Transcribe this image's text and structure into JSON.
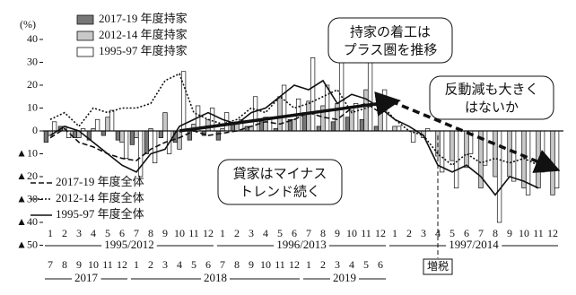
{
  "chart_data": {
    "type": "bar",
    "y_label": "(%)",
    "ylim": [
      -50,
      40
    ],
    "yticks": [
      40,
      30,
      20,
      10,
      0,
      {
        "value": -10,
        "label": "▲10"
      },
      {
        "value": -20,
        "label": "▲20"
      },
      {
        "value": -30,
        "label": "▲30"
      },
      {
        "value": -40,
        "label": "▲40"
      },
      {
        "value": -50,
        "label": "▲50"
      }
    ],
    "groups": [
      {
        "label": "1995/2012",
        "categories": [
          "1",
          "2",
          "3",
          "4",
          "5",
          "6",
          "7",
          "8",
          "9",
          "10",
          "11",
          "12"
        ]
      },
      {
        "label": "1996/2013",
        "categories": [
          "1",
          "2",
          "3",
          "4",
          "5",
          "6",
          "7",
          "8",
          "9",
          "10",
          "11",
          "12"
        ]
      },
      {
        "label": "1997/2014",
        "categories": [
          "1",
          "2",
          "3",
          "4",
          "5",
          "6",
          "7",
          "8",
          "9",
          "10",
          "11",
          "12"
        ]
      }
    ],
    "x2_groups": [
      {
        "label": "2017",
        "categories": [
          "7",
          "8",
          "9",
          "10",
          "11",
          "12"
        ]
      },
      {
        "label": "2018",
        "categories": [
          "1",
          "2",
          "3",
          "4",
          "5",
          "6",
          "7",
          "8",
          "9",
          "10",
          "11",
          "12"
        ]
      },
      {
        "label": "2019",
        "categories": [
          "1",
          "2",
          "3",
          "4",
          "5",
          "6"
        ]
      }
    ],
    "series": [
      {
        "name": "2017-19 年度持家",
        "kind": "bar",
        "color": "#777777",
        "values": [
          -5,
          2,
          -3,
          -4,
          -2,
          -4,
          -6,
          -10,
          -3,
          -5,
          -4,
          -2,
          -4,
          3,
          2,
          4,
          1,
          5,
          8,
          2,
          4,
          6,
          5,
          2,
          null,
          null,
          null,
          null,
          null,
          null,
          null,
          null,
          null,
          null,
          null,
          null
        ]
      },
      {
        "name": "2012-14 年度持家",
        "kind": "bar",
        "color": "#c8c8c8",
        "values": [
          -2,
          2,
          -3,
          1,
          6,
          -5,
          -3,
          1,
          8,
          -8,
          3,
          5,
          1,
          4,
          2,
          6,
          15,
          5,
          13,
          11,
          12,
          9,
          18,
          12,
          2,
          0,
          -3,
          -11,
          -13,
          -16,
          -25,
          -20,
          -20,
          -25,
          -25,
          -28
        ]
      },
      {
        "name": "1995-97 年度持家",
        "kind": "bar",
        "color": "#ffffff",
        "values": [
          4,
          -3,
          1,
          5,
          9,
          -12,
          -20,
          -14,
          -10,
          26,
          11,
          10,
          8,
          5,
          15,
          6,
          20,
          14,
          32,
          20,
          36,
          12,
          30,
          18,
          2,
          -5,
          1,
          -18,
          -25,
          -10,
          -15,
          -40,
          -22,
          -28,
          -18,
          -25
        ]
      },
      {
        "name": "2017-19 年度全体",
        "kind": "line",
        "dash": "dashed",
        "color": "#111111",
        "values": [
          -3,
          1,
          -5,
          -7,
          -10,
          -12,
          -13,
          -8,
          -5,
          -3,
          0,
          -2,
          -1,
          0,
          2,
          4,
          3,
          5,
          8,
          6,
          5,
          10,
          12,
          8,
          null,
          null,
          null,
          null,
          null,
          null,
          null,
          null,
          null,
          null,
          null,
          null
        ]
      },
      {
        "name": "2012-14 年度全体",
        "kind": "line",
        "dash": "dotted",
        "color": "#111111",
        "values": [
          5,
          8,
          2,
          10,
          8,
          10,
          10,
          12,
          22,
          25,
          8,
          5,
          3,
          5,
          10,
          8,
          15,
          10,
          12,
          15,
          18,
          8,
          10,
          12,
          5,
          0,
          -2,
          -10,
          -15,
          -10,
          -14,
          -12,
          -14,
          -12,
          -15,
          -16
        ]
      },
      {
        "name": "1995-97 年度全体",
        "kind": "line",
        "dash": "solid",
        "color": "#111111",
        "values": [
          -2,
          2,
          0,
          -5,
          -10,
          -15,
          -18,
          -10,
          -8,
          2,
          5,
          8,
          5,
          3,
          8,
          10,
          15,
          20,
          18,
          22,
          12,
          16,
          14,
          10,
          5,
          2,
          -2,
          -15,
          -18,
          -15,
          -20,
          -28,
          -20,
          -22,
          -25,
          null
        ]
      }
    ],
    "event_label": "増税",
    "callouts": [
      [
        "持家の着工は",
        "プラス圏を推移"
      ],
      [
        "反動減も大きく",
        "はないか"
      ],
      [
        "貸家はマイナス",
        "トレンド続く"
      ]
    ]
  }
}
